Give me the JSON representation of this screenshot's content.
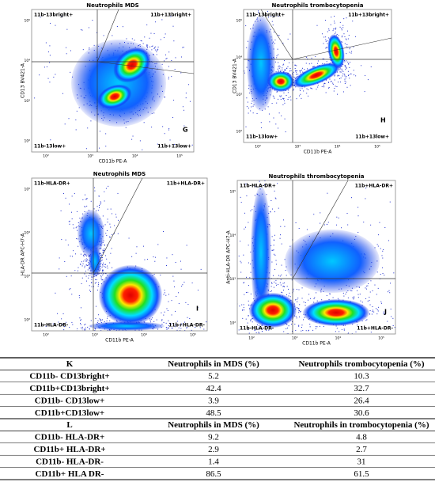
{
  "plots": [
    {
      "title": "Neutrophils MDS",
      "panel": "G",
      "y_label": "CD13 BV421-A",
      "x_label": "CD11b PE-A",
      "quadrants": [
        "11b-13bright+",
        "11b+13bright+",
        "11b-13low+",
        "11b+13low+"
      ],
      "x_ticks": [
        "10²",
        "10³",
        "10⁴",
        "10⁵"
      ],
      "y_ticks": [
        "10⁵",
        "10⁴",
        "10³",
        "10²"
      ]
    },
    {
      "title": "Neutrophils trombocytopenia",
      "panel": "H",
      "y_label": "CD13 BV421-A",
      "x_label": "CD11b PE-A",
      "quadrants": [
        "11b-13bright+",
        "11b+13bright+",
        "11b-13low+",
        "11b+13low+"
      ],
      "x_ticks": [
        "10²",
        "10³",
        "10⁴",
        "10⁵"
      ],
      "y_ticks": [
        "10⁵",
        "10⁴",
        "10³",
        "10²"
      ]
    },
    {
      "title": "Neutrophils MDS",
      "panel": "I",
      "y_label": "HLA-DR APC-H7-A",
      "x_label": "CD11b PE-A",
      "quadrants": [
        "11b-HLA-DR+",
        "11b+HLA-DR+",
        "11b-HLA-DR-",
        "11b+HLA-DR-"
      ],
      "x_ticks": [
        "10²",
        "10³",
        "10⁴",
        "10⁵"
      ],
      "y_ticks": [
        "10⁵",
        "10⁴",
        "10³",
        "10²"
      ]
    },
    {
      "title": "Neutrophils thrombocytopenia",
      "panel": "J",
      "y_label": "Anti-HLA-DR APC-H7-A",
      "x_label": "CD11b PE-A",
      "quadrants": [
        "11b-HLA-DR+",
        "11b+HLA-DR+",
        "11b-HLA-DR-",
        "11b+HLA-DR-"
      ],
      "x_ticks": [
        "10²",
        "10³",
        "10⁴",
        "10⁵"
      ],
      "y_ticks": [
        "10⁵",
        "10⁴",
        "10³",
        "10²"
      ]
    }
  ],
  "table": {
    "sections": [
      {
        "header": [
          "K",
          "Neutrophils in MDS (%)",
          "Neutrophils trombocytopenia (%)"
        ],
        "rows": [
          [
            "CD11b- CD13bright+",
            5.2,
            10.3
          ],
          [
            "CD11b+CD13bright+",
            42.4,
            32.7
          ],
          [
            "CD11b- CD13low+",
            3.9,
            26.4
          ],
          [
            "CD11b+CD13low+",
            48.5,
            30.6
          ]
        ]
      },
      {
        "header": [
          "L",
          "Neutrophils in MDS (%)",
          "Neutrophils in trombocytopenia (%)"
        ],
        "rows": [
          [
            "CD11b- HLA-DR+",
            9.2,
            4.8
          ],
          [
            "CD11b+ HLA-DR+",
            2.9,
            2.7
          ],
          [
            "CD11b- HLA-DR-",
            1.4,
            31
          ],
          [
            "CD11b+ HLA DR-",
            86.5,
            61.5
          ]
        ]
      }
    ]
  }
}
